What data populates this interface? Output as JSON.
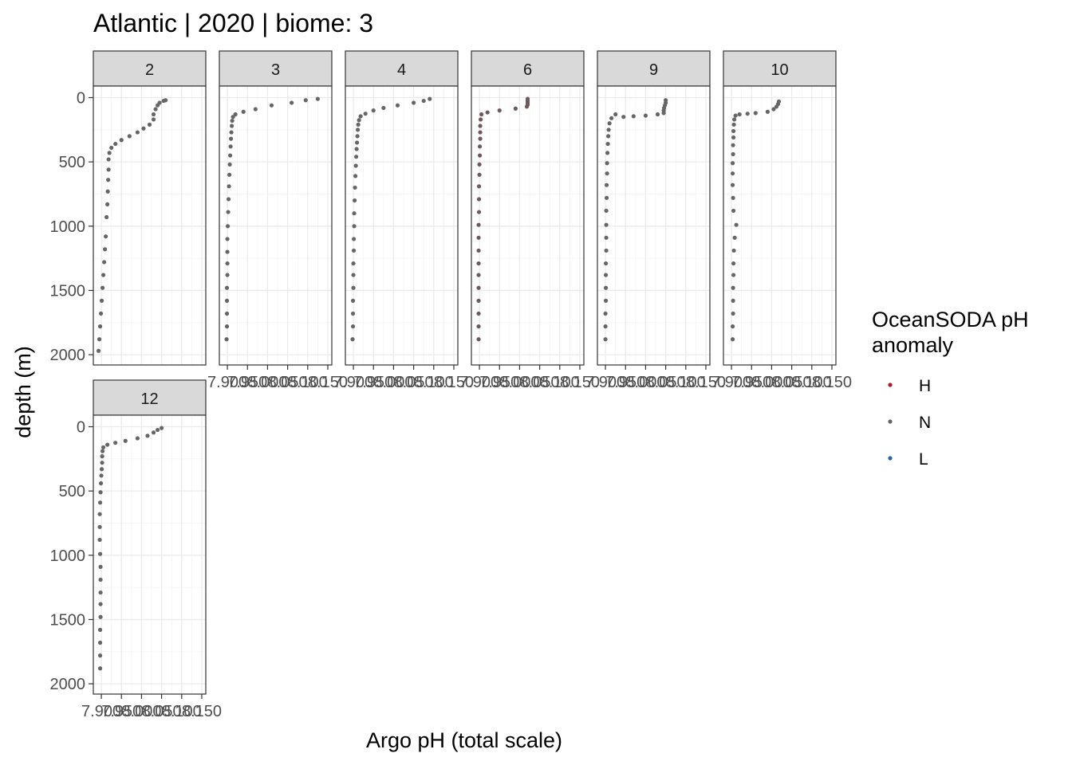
{
  "chart_data": {
    "type": "scatter",
    "title": "Atlantic | 2020 | biome: 3",
    "xlabel": "Argo pH (total scale)",
    "ylabel": "depth (m)",
    "facet_variable": "profile",
    "facets": [
      "2",
      "3",
      "4",
      "6",
      "9",
      "10",
      "12"
    ],
    "x_ticks": [
      7.9,
      7.95,
      8.0,
      8.05,
      8.1,
      8.15
    ],
    "x_tick_labels": [
      "7.900",
      "7.950",
      "8.000",
      "8.050",
      "8.100",
      "8.150"
    ],
    "xlim": [
      7.88,
      8.16
    ],
    "y_ticks": [
      0,
      500,
      1000,
      1500,
      2000
    ],
    "ylim": [
      2080,
      -90
    ],
    "y_reversed": true,
    "grid": true,
    "legend": {
      "title_lines": [
        "OceanSODA pH",
        "anomaly"
      ],
      "position": "right",
      "entries": [
        {
          "label": "H",
          "color": "#b2182b"
        },
        {
          "label": "N",
          "color": "#666666"
        },
        {
          "label": "L",
          "color": "#2166ac"
        }
      ]
    },
    "profiles": {
      "2": {
        "color": "#666666",
        "points": [
          [
            8.06,
            20
          ],
          [
            8.055,
            25
          ],
          [
            8.045,
            40
          ],
          [
            8.04,
            60
          ],
          [
            8.035,
            90
          ],
          [
            8.03,
            130
          ],
          [
            8.03,
            170
          ],
          [
            8.02,
            210
          ],
          [
            8.005,
            240
          ],
          [
            7.99,
            270
          ],
          [
            7.97,
            300
          ],
          [
            7.95,
            330
          ],
          [
            7.935,
            360
          ],
          [
            7.925,
            390
          ],
          [
            7.92,
            430
          ],
          [
            7.918,
            480
          ],
          [
            7.918,
            560
          ],
          [
            7.917,
            640
          ],
          [
            7.916,
            730
          ],
          [
            7.915,
            830
          ],
          [
            7.913,
            930
          ],
          [
            7.911,
            1080
          ],
          [
            7.909,
            1180
          ],
          [
            7.907,
            1280
          ],
          [
            7.905,
            1380
          ],
          [
            7.903,
            1480
          ],
          [
            7.901,
            1580
          ],
          [
            7.899,
            1680
          ],
          [
            7.897,
            1780
          ],
          [
            7.895,
            1880
          ],
          [
            7.893,
            1970
          ]
        ]
      },
      "3": {
        "color": "#666666",
        "points": [
          [
            8.125,
            10
          ],
          [
            8.095,
            20
          ],
          [
            8.06,
            40
          ],
          [
            8.01,
            60
          ],
          [
            7.97,
            90
          ],
          [
            7.94,
            110
          ],
          [
            7.92,
            130
          ],
          [
            7.914,
            150
          ],
          [
            7.912,
            180
          ],
          [
            7.911,
            220
          ],
          [
            7.91,
            270
          ],
          [
            7.909,
            320
          ],
          [
            7.908,
            380
          ],
          [
            7.907,
            450
          ],
          [
            7.906,
            520
          ],
          [
            7.905,
            600
          ],
          [
            7.904,
            690
          ],
          [
            7.903,
            790
          ],
          [
            7.902,
            890
          ],
          [
            7.901,
            1000
          ],
          [
            7.9,
            1100
          ],
          [
            7.9,
            1200
          ],
          [
            7.9,
            1290
          ],
          [
            7.9,
            1380
          ],
          [
            7.899,
            1480
          ],
          [
            7.899,
            1580
          ],
          [
            7.899,
            1680
          ],
          [
            7.899,
            1780
          ],
          [
            7.898,
            1880
          ]
        ]
      },
      "4": {
        "color": "#666666",
        "points": [
          [
            8.09,
            10
          ],
          [
            8.075,
            25
          ],
          [
            8.05,
            40
          ],
          [
            8.01,
            60
          ],
          [
            7.975,
            80
          ],
          [
            7.95,
            100
          ],
          [
            7.93,
            125
          ],
          [
            7.918,
            145
          ],
          [
            7.914,
            175
          ],
          [
            7.912,
            210
          ],
          [
            7.911,
            250
          ],
          [
            7.91,
            300
          ],
          [
            7.909,
            350
          ],
          [
            7.908,
            400
          ],
          [
            7.907,
            460
          ],
          [
            7.906,
            530
          ],
          [
            7.905,
            610
          ],
          [
            7.904,
            700
          ],
          [
            7.903,
            800
          ],
          [
            7.902,
            900
          ],
          [
            7.902,
            1000
          ],
          [
            7.901,
            1100
          ],
          [
            7.901,
            1190
          ],
          [
            7.9,
            1290
          ],
          [
            7.9,
            1380
          ],
          [
            7.9,
            1480
          ],
          [
            7.899,
            1580
          ],
          [
            7.899,
            1680
          ],
          [
            7.899,
            1780
          ],
          [
            7.898,
            1880
          ]
        ]
      },
      "6": {
        "color": "#6e5a5d",
        "points": [
          [
            8.02,
            10
          ],
          [
            8.02,
            25
          ],
          [
            8.02,
            40
          ],
          [
            8.02,
            55
          ],
          [
            8.018,
            70
          ],
          [
            7.99,
            85
          ],
          [
            7.95,
            100
          ],
          [
            7.92,
            115
          ],
          [
            7.905,
            130
          ],
          [
            7.903,
            170
          ],
          [
            7.902,
            220
          ],
          [
            7.902,
            270
          ],
          [
            7.902,
            320
          ],
          [
            7.901,
            380
          ],
          [
            7.901,
            450
          ],
          [
            7.9,
            520
          ],
          [
            7.9,
            600
          ],
          [
            7.899,
            690
          ],
          [
            7.899,
            790
          ],
          [
            7.899,
            890
          ],
          [
            7.898,
            990
          ],
          [
            7.898,
            1090
          ],
          [
            7.898,
            1190
          ],
          [
            7.898,
            1290
          ],
          [
            7.898,
            1380
          ],
          [
            7.898,
            1480
          ],
          [
            7.898,
            1580
          ],
          [
            7.898,
            1680
          ],
          [
            7.898,
            1780
          ],
          [
            7.898,
            1880
          ]
        ]
      },
      "9": {
        "color": "#666666",
        "points": [
          [
            8.05,
            20
          ],
          [
            8.05,
            40
          ],
          [
            8.048,
            60
          ],
          [
            8.046,
            80
          ],
          [
            8.045,
            100
          ],
          [
            8.045,
            120
          ],
          [
            8.03,
            130
          ],
          [
            8.0,
            140
          ],
          [
            7.97,
            145
          ],
          [
            7.945,
            150
          ],
          [
            7.925,
            130
          ],
          [
            7.915,
            160
          ],
          [
            7.91,
            200
          ],
          [
            7.908,
            250
          ],
          [
            7.907,
            300
          ],
          [
            7.906,
            360
          ],
          [
            7.905,
            430
          ],
          [
            7.904,
            510
          ],
          [
            7.904,
            590
          ],
          [
            7.903,
            680
          ],
          [
            7.903,
            780
          ],
          [
            7.902,
            880
          ],
          [
            7.902,
            990
          ],
          [
            7.902,
            1090
          ],
          [
            7.902,
            1190
          ],
          [
            7.901,
            1290
          ],
          [
            7.901,
            1380
          ],
          [
            7.901,
            1480
          ],
          [
            7.901,
            1580
          ],
          [
            7.9,
            1680
          ],
          [
            7.9,
            1780
          ],
          [
            7.9,
            1880
          ]
        ]
      },
      "10": {
        "color": "#666666",
        "points": [
          [
            8.018,
            30
          ],
          [
            8.016,
            50
          ],
          [
            8.012,
            70
          ],
          [
            8.005,
            90
          ],
          [
            7.99,
            110
          ],
          [
            7.96,
            120
          ],
          [
            7.94,
            125
          ],
          [
            7.92,
            130
          ],
          [
            7.91,
            140
          ],
          [
            7.907,
            170
          ],
          [
            7.906,
            210
          ],
          [
            7.905,
            260
          ],
          [
            7.905,
            310
          ],
          [
            7.904,
            370
          ],
          [
            7.904,
            440
          ],
          [
            7.903,
            510
          ],
          [
            7.903,
            590
          ],
          [
            7.903,
            680
          ],
          [
            7.904,
            780
          ],
          [
            7.905,
            880
          ],
          [
            7.912,
            990
          ],
          [
            7.908,
            1090
          ],
          [
            7.906,
            1190
          ],
          [
            7.905,
            1290
          ],
          [
            7.905,
            1380
          ],
          [
            7.904,
            1480
          ],
          [
            7.904,
            1580
          ],
          [
            7.904,
            1680
          ],
          [
            7.903,
            1780
          ],
          [
            7.903,
            1880
          ]
        ]
      },
      "12": {
        "color": "#666666",
        "points": [
          [
            8.05,
            10
          ],
          [
            8.04,
            25
          ],
          [
            8.03,
            45
          ],
          [
            8.015,
            70
          ],
          [
            7.99,
            90
          ],
          [
            7.96,
            110
          ],
          [
            7.935,
            125
          ],
          [
            7.915,
            140
          ],
          [
            7.905,
            160
          ],
          [
            7.903,
            190
          ],
          [
            7.902,
            230
          ],
          [
            7.902,
            280
          ],
          [
            7.901,
            330
          ],
          [
            7.9,
            380
          ],
          [
            7.899,
            440
          ],
          [
            7.898,
            510
          ],
          [
            7.897,
            590
          ],
          [
            7.896,
            680
          ],
          [
            7.896,
            780
          ],
          [
            7.896,
            880
          ],
          [
            7.897,
            990
          ],
          [
            7.898,
            1090
          ],
          [
            7.898,
            1190
          ],
          [
            7.898,
            1290
          ],
          [
            7.898,
            1380
          ],
          [
            7.898,
            1480
          ],
          [
            7.897,
            1580
          ],
          [
            7.897,
            1680
          ],
          [
            7.897,
            1780
          ],
          [
            7.897,
            1880
          ]
        ]
      }
    }
  }
}
